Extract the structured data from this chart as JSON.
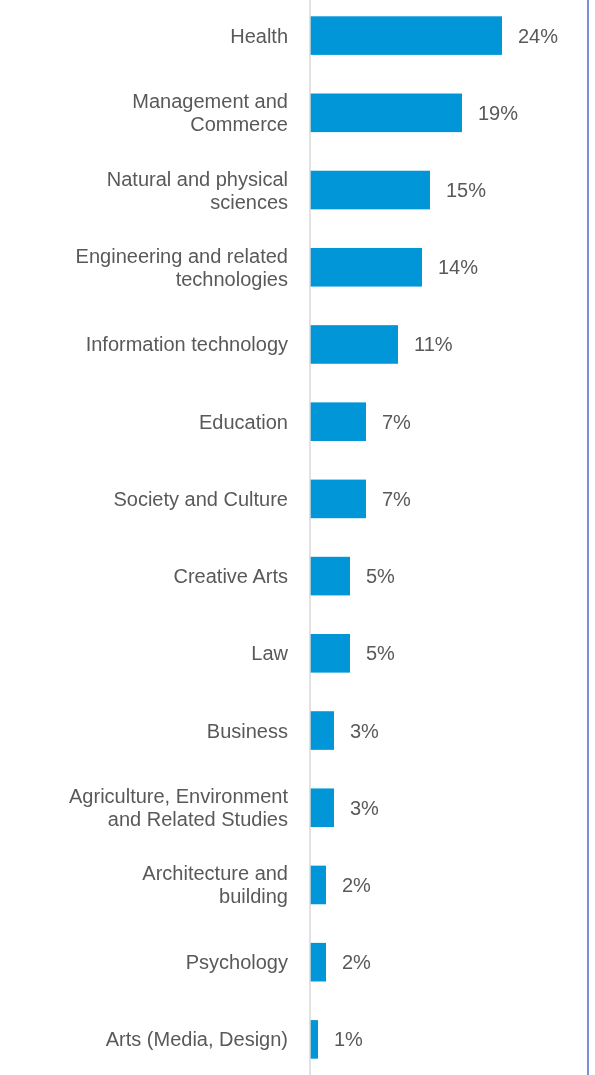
{
  "chart_data": {
    "type": "bar",
    "orientation": "horizontal",
    "value_labels": [
      "24%",
      "19%",
      "15%",
      "14%",
      "11%",
      "7%",
      "7%",
      "5%",
      "5%",
      "3%",
      "3%",
      "2%",
      "2%",
      "1%"
    ],
    "color": "#0096d7",
    "categories": [
      "Health",
      "Management and\nCommerce",
      "Natural and physical\nsciences",
      "Engineering and related\ntechnologies",
      "Information technology",
      "Education",
      "Society and Culture",
      "Creative Arts",
      "Law",
      "Business",
      "Agriculture, Environment\nand Related Studies",
      "Architecture and\nbuilding",
      "Psychology",
      "Arts (Media, Design)"
    ],
    "values": [
      24,
      19,
      15,
      14,
      11,
      7,
      7,
      5,
      5,
      3,
      3,
      2,
      2,
      1
    ]
  }
}
